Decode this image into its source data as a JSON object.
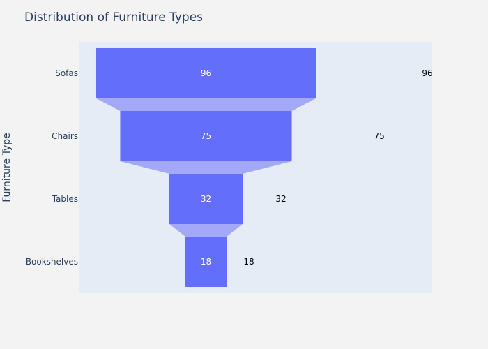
{
  "chart_data": {
    "type": "funnel",
    "title": "Distribution of Furniture Types",
    "ylabel": "Furniture Type",
    "categories": [
      "Sofas",
      "Chairs",
      "Tables",
      "Bookshelves"
    ],
    "values": [
      96,
      75,
      32,
      18
    ],
    "colors": {
      "bar": "#636efa",
      "connector": "#a3a9f8",
      "plot_bg": "#e5ecf6",
      "paper_bg": "#f3f3f3",
      "text": "#2a3f5f"
    }
  }
}
